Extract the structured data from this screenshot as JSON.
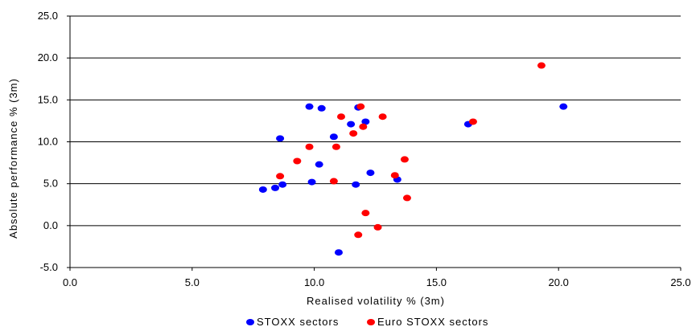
{
  "chart_data": {
    "type": "scatter",
    "xlabel": "Realised volatility % (3m)",
    "ylabel": "Absolute performance % (3m)",
    "xlim": [
      0,
      25
    ],
    "ylim": [
      -5,
      25
    ],
    "x_ticks": [
      "0.0",
      "5.0",
      "10.0",
      "15.0",
      "20.0",
      "25.0"
    ],
    "y_ticks": [
      "-5.0",
      "0.0",
      "5.0",
      "10.0",
      "15.0",
      "20.0",
      "25.0"
    ],
    "grid": "horizontal",
    "legend_position": "bottom",
    "series": [
      {
        "name": "STOXX sectors",
        "color": "#0000ff",
        "points": [
          {
            "x": 7.9,
            "y": 4.3
          },
          {
            "x": 8.4,
            "y": 4.5
          },
          {
            "x": 8.7,
            "y": 4.9
          },
          {
            "x": 8.6,
            "y": 10.4
          },
          {
            "x": 9.8,
            "y": 14.2
          },
          {
            "x": 10.3,
            "y": 14.0
          },
          {
            "x": 9.9,
            "y": 5.2
          },
          {
            "x": 10.2,
            "y": 7.3
          },
          {
            "x": 10.8,
            "y": 10.6
          },
          {
            "x": 11.5,
            "y": 12.1
          },
          {
            "x": 11.8,
            "y": 14.1
          },
          {
            "x": 12.1,
            "y": 12.4
          },
          {
            "x": 12.3,
            "y": 6.3
          },
          {
            "x": 11.7,
            "y": 4.9
          },
          {
            "x": 11.0,
            "y": -3.2
          },
          {
            "x": 13.4,
            "y": 5.5
          },
          {
            "x": 16.3,
            "y": 12.1
          },
          {
            "x": 20.2,
            "y": 14.2
          }
        ]
      },
      {
        "name": "Euro STOXX sectors",
        "color": "#ff0000",
        "points": [
          {
            "x": 8.6,
            "y": 5.9
          },
          {
            "x": 9.3,
            "y": 7.7
          },
          {
            "x": 9.8,
            "y": 9.4
          },
          {
            "x": 10.8,
            "y": 5.3
          },
          {
            "x": 10.9,
            "y": 9.4
          },
          {
            "x": 11.1,
            "y": 13.0
          },
          {
            "x": 11.6,
            "y": 11.0
          },
          {
            "x": 11.9,
            "y": 14.2
          },
          {
            "x": 12.0,
            "y": 11.8
          },
          {
            "x": 12.8,
            "y": 13.0
          },
          {
            "x": 12.1,
            "y": 1.5
          },
          {
            "x": 11.8,
            "y": -1.1
          },
          {
            "x": 12.6,
            "y": -0.2
          },
          {
            "x": 13.3,
            "y": 6.0
          },
          {
            "x": 13.7,
            "y": 7.9
          },
          {
            "x": 13.8,
            "y": 3.3
          },
          {
            "x": 16.5,
            "y": 12.4
          },
          {
            "x": 19.3,
            "y": 19.1
          }
        ]
      }
    ]
  }
}
